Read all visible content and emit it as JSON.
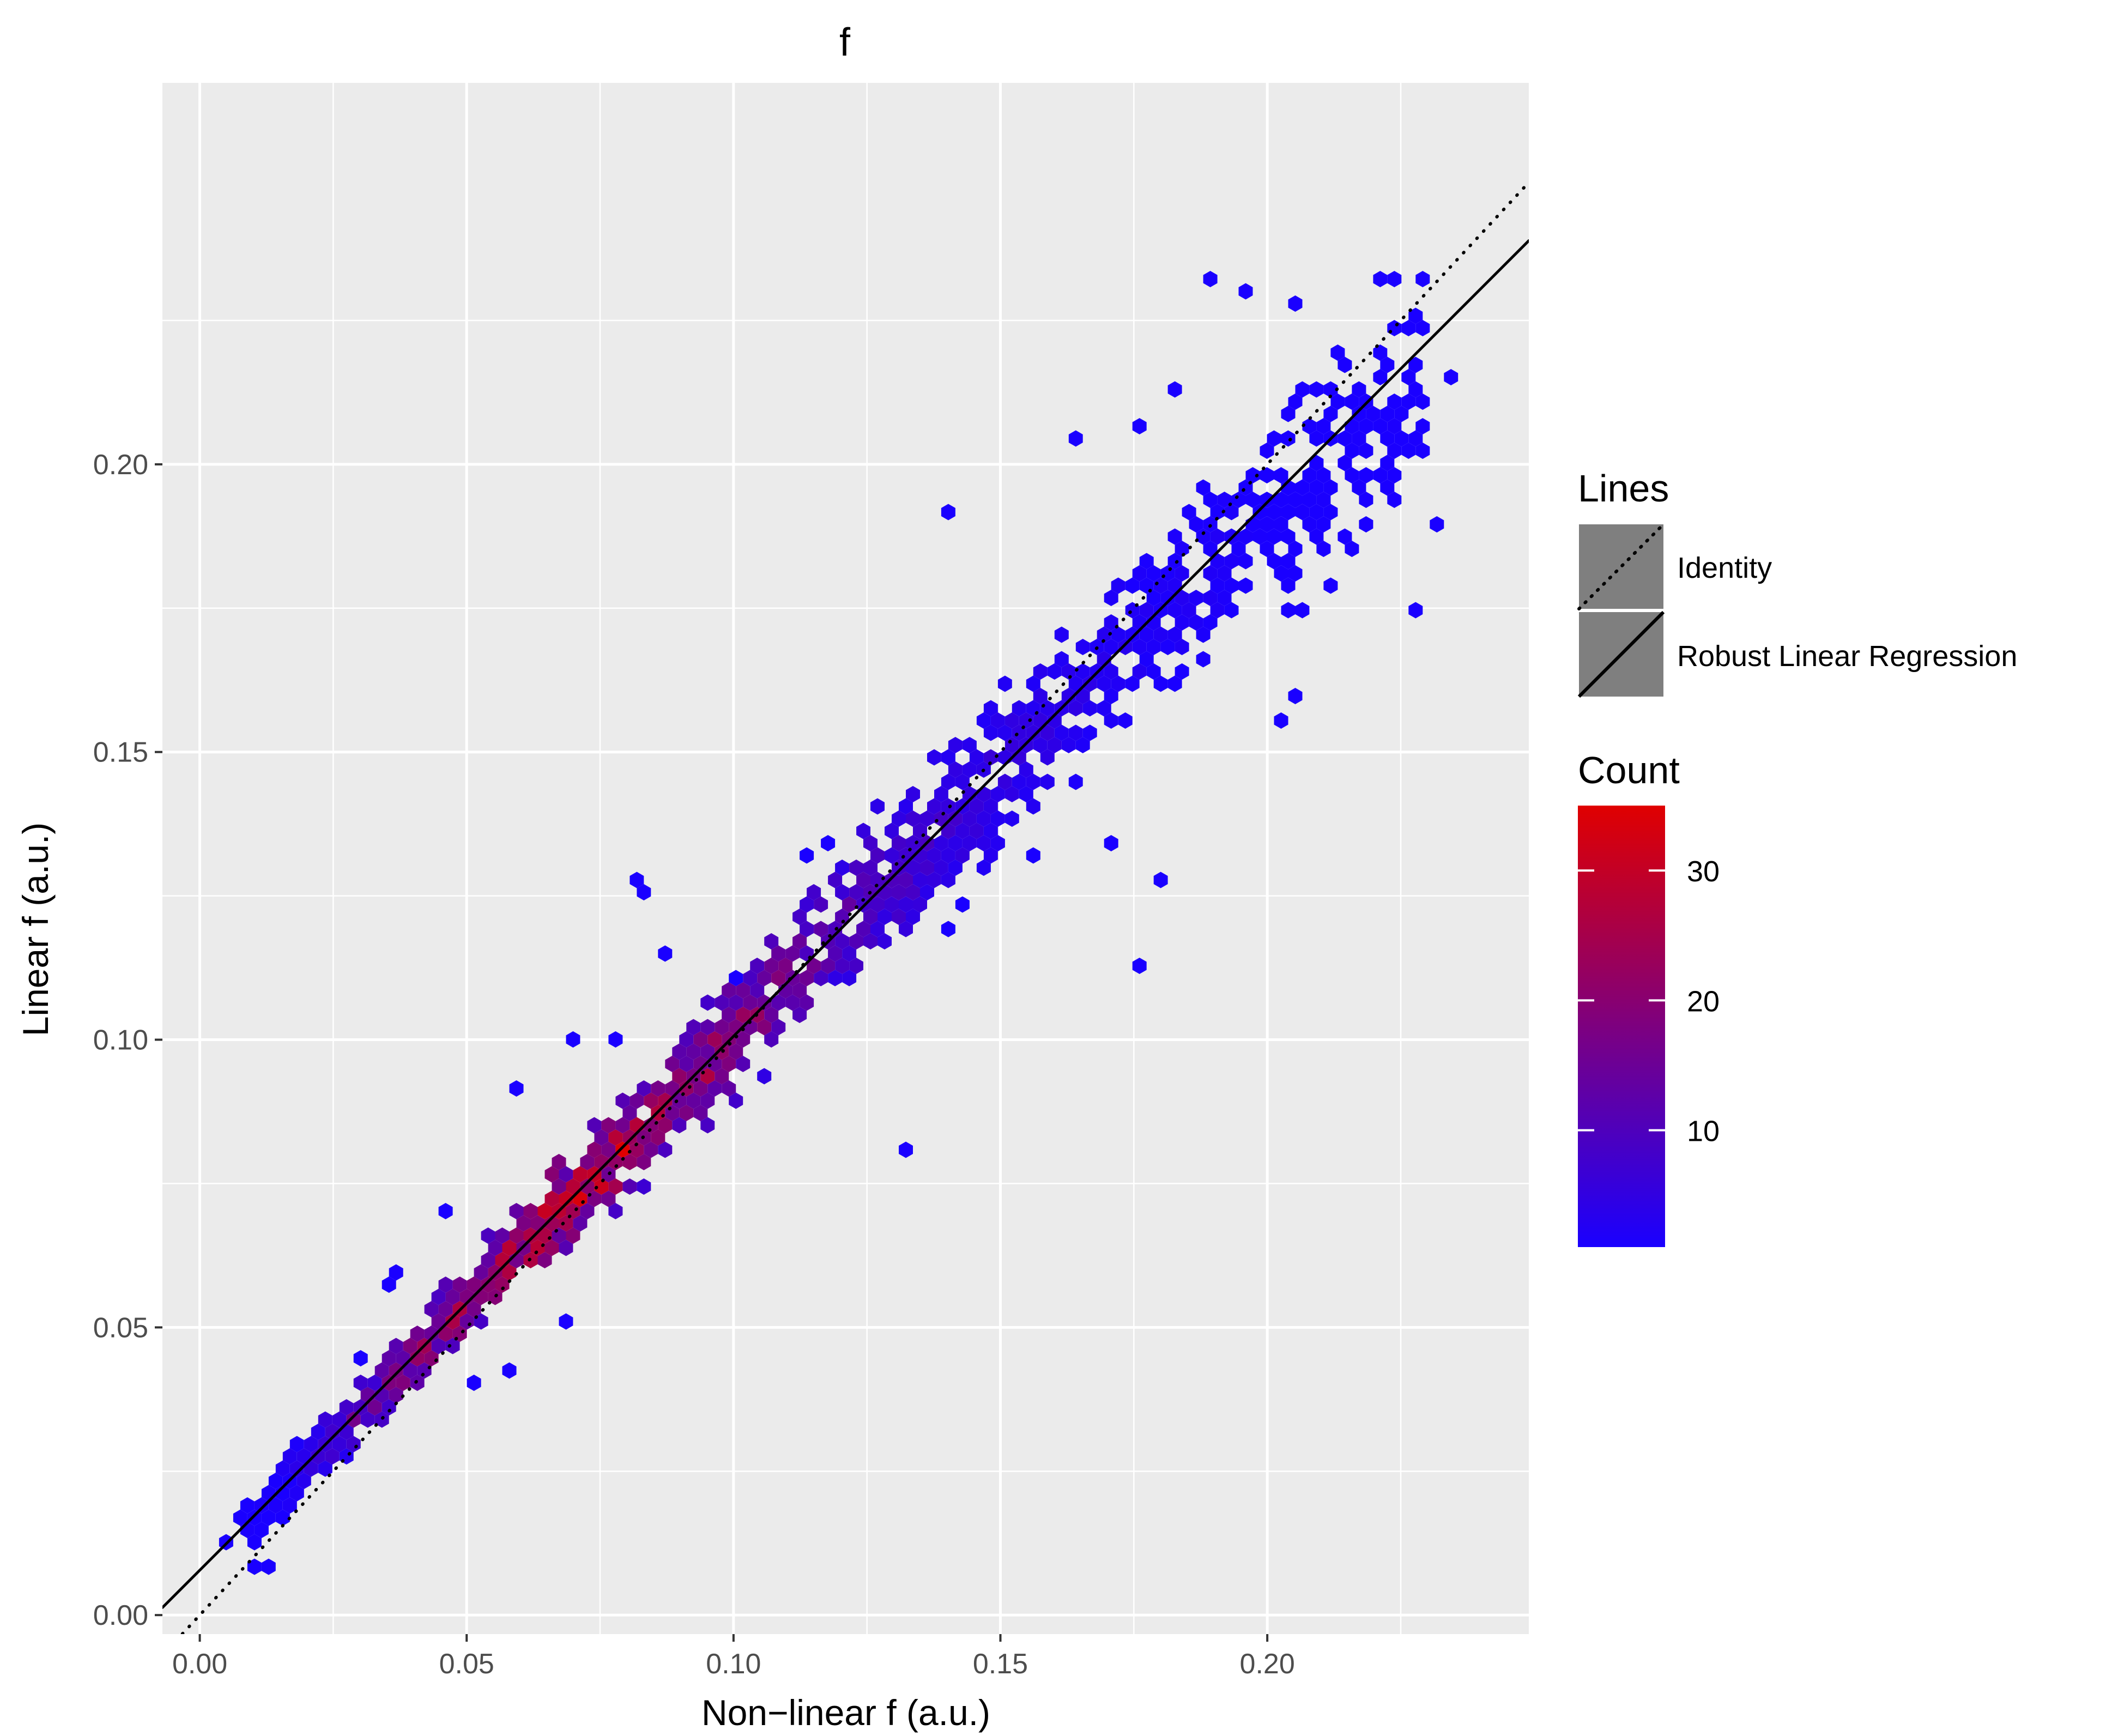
{
  "chart_data": {
    "type": "heatmap",
    "subtype": "hexbin-scatter",
    "title": "f",
    "xlabel": "Non−linear f (a.u.)",
    "ylabel": "Linear f (a.u.)",
    "xlim": [
      -0.007,
      0.249
    ],
    "ylim": [
      -0.0033,
      0.2663
    ],
    "x_ticks": [
      0.0,
      0.05,
      0.1,
      0.15,
      0.2
    ],
    "x_tick_labels": [
      "0.00",
      "0.05",
      "0.10",
      "0.15",
      "0.20"
    ],
    "y_ticks": [
      0.0,
      0.05,
      0.1,
      0.15,
      0.2
    ],
    "y_tick_labels": [
      "0.00",
      "0.05",
      "0.10",
      "0.15",
      "0.20"
    ],
    "grid": true,
    "panel_background": "#ebebeb",
    "grid_color": "#ffffff",
    "color_scale": {
      "title": "Count",
      "low": 1,
      "high": 35,
      "low_color": "#1a00ff",
      "high_color": "#e00000",
      "breaks": [
        10,
        20,
        30
      ],
      "break_labels": [
        "10",
        "20",
        "30"
      ]
    },
    "lines_legend": {
      "title": "Lines",
      "items": [
        {
          "label": "Identity",
          "linetype": "dotted"
        },
        {
          "label": "Robust Linear Regression",
          "linetype": "solid"
        }
      ]
    },
    "lines": [
      {
        "name": "Identity",
        "linetype": "dotted",
        "intercept": 0.0,
        "slope": 1.0,
        "color": "#000000"
      },
      {
        "name": "Robust Linear Regression",
        "linetype": "solid",
        "intercept": 0.0078,
        "slope": 0.928,
        "color": "#000000"
      }
    ],
    "density_band": [
      {
        "x": 0.008,
        "y_center": 0.015,
        "count": 1
      },
      {
        "x": 0.015,
        "y_center": 0.021,
        "count": 2
      },
      {
        "x": 0.022,
        "y_center": 0.028,
        "count": 6
      },
      {
        "x": 0.03,
        "y_center": 0.036,
        "count": 15
      },
      {
        "x": 0.04,
        "y_center": 0.045,
        "count": 20
      },
      {
        "x": 0.05,
        "y_center": 0.055,
        "count": 22
      },
      {
        "x": 0.06,
        "y_center": 0.064,
        "count": 26
      },
      {
        "x": 0.07,
        "y_center": 0.073,
        "count": 30
      },
      {
        "x": 0.08,
        "y_center": 0.082,
        "count": 26
      },
      {
        "x": 0.09,
        "y_center": 0.091,
        "count": 22
      },
      {
        "x": 0.1,
        "y_center": 0.101,
        "count": 20
      },
      {
        "x": 0.11,
        "y_center": 0.11,
        "count": 16
      },
      {
        "x": 0.12,
        "y_center": 0.12,
        "count": 12
      },
      {
        "x": 0.13,
        "y_center": 0.129,
        "count": 9
      },
      {
        "x": 0.14,
        "y_center": 0.138,
        "count": 7
      },
      {
        "x": 0.15,
        "y_center": 0.147,
        "count": 5
      },
      {
        "x": 0.16,
        "y_center": 0.156,
        "count": 4
      },
      {
        "x": 0.17,
        "y_center": 0.165,
        "count": 3
      },
      {
        "x": 0.18,
        "y_center": 0.173,
        "count": 2
      },
      {
        "x": 0.19,
        "y_center": 0.182,
        "count": 2
      },
      {
        "x": 0.2,
        "y_center": 0.19,
        "count": 1
      },
      {
        "x": 0.21,
        "y_center": 0.198,
        "count": 1
      },
      {
        "x": 0.22,
        "y_center": 0.206,
        "count": 1
      },
      {
        "x": 0.23,
        "y_center": 0.213,
        "count": 1
      }
    ],
    "outliers": [
      {
        "x": 0.082,
        "y": 0.127,
        "count": 1
      },
      {
        "x": 0.084,
        "y": 0.125,
        "count": 1
      },
      {
        "x": 0.133,
        "y": 0.081,
        "count": 1
      },
      {
        "x": 0.175,
        "y": 0.112,
        "count": 1
      },
      {
        "x": 0.18,
        "y": 0.128,
        "count": 1
      },
      {
        "x": 0.141,
        "y": 0.192,
        "count": 1
      },
      {
        "x": 0.068,
        "y": 0.05,
        "count": 1
      },
      {
        "x": 0.052,
        "y": 0.041,
        "count": 1
      },
      {
        "x": 0.057,
        "y": 0.042,
        "count": 1
      },
      {
        "x": 0.189,
        "y": 0.232,
        "count": 1
      },
      {
        "x": 0.195,
        "y": 0.23,
        "count": 1
      },
      {
        "x": 0.205,
        "y": 0.228,
        "count": 1
      },
      {
        "x": 0.225,
        "y": 0.232,
        "count": 1
      },
      {
        "x": 0.22,
        "y": 0.232,
        "count": 1
      },
      {
        "x": 0.235,
        "y": 0.216,
        "count": 1
      },
      {
        "x": 0.203,
        "y": 0.156,
        "count": 1
      },
      {
        "x": 0.205,
        "y": 0.159,
        "count": 1
      },
      {
        "x": 0.183,
        "y": 0.212,
        "count": 1
      },
      {
        "x": 0.176,
        "y": 0.206,
        "count": 1
      },
      {
        "x": 0.163,
        "y": 0.204,
        "count": 1
      },
      {
        "x": 0.227,
        "y": 0.174,
        "count": 1
      },
      {
        "x": 0.233,
        "y": 0.189,
        "count": 1
      },
      {
        "x": 0.171,
        "y": 0.134,
        "count": 1
      },
      {
        "x": 0.157,
        "y": 0.133,
        "count": 1
      },
      {
        "x": 0.143,
        "y": 0.124,
        "count": 1
      },
      {
        "x": 0.14,
        "y": 0.12,
        "count": 1
      },
      {
        "x": 0.113,
        "y": 0.131,
        "count": 1
      },
      {
        "x": 0.119,
        "y": 0.134,
        "count": 1
      },
      {
        "x": 0.101,
        "y": 0.111,
        "count": 1
      },
      {
        "x": 0.087,
        "y": 0.114,
        "count": 1
      },
      {
        "x": 0.078,
        "y": 0.1,
        "count": 1
      },
      {
        "x": 0.069,
        "y": 0.101,
        "count": 1
      },
      {
        "x": 0.06,
        "y": 0.092,
        "count": 1
      },
      {
        "x": 0.045,
        "y": 0.07,
        "count": 1
      },
      {
        "x": 0.037,
        "y": 0.06,
        "count": 1
      },
      {
        "x": 0.036,
        "y": 0.057,
        "count": 1
      },
      {
        "x": 0.029,
        "y": 0.045,
        "count": 1
      },
      {
        "x": 0.006,
        "y": 0.013,
        "count": 1
      },
      {
        "x": 0.01,
        "y": 0.009,
        "count": 1
      },
      {
        "x": 0.014,
        "y": 0.008,
        "count": 1
      }
    ]
  }
}
